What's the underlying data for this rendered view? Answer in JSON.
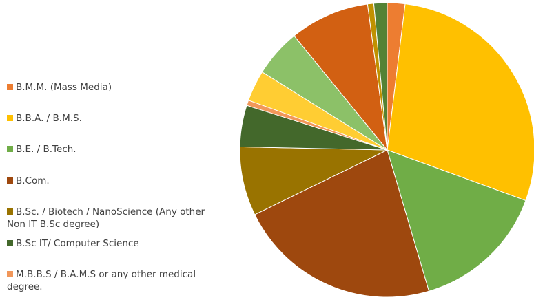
{
  "chart_data": {
    "type": "pie",
    "title": "",
    "legend_position": "left",
    "categories": [
      "B.M.M. (Mass Media)",
      "B.B.A. / B.M.S.",
      "B.E. / B.Tech.",
      "B.Com.",
      "B.Sc. / Biotech / NanoScience (Any other Non IT B.Sc degree)",
      "B.Sc IT/ Computer Science",
      "M.B.B.S / B.A.M.S or any other medical degree.",
      "",
      "",
      "",
      "",
      ""
    ],
    "legend_lines": [
      [
        "B.M.M. (Mass Media)"
      ],
      [
        "B.B.A. / B.M.S."
      ],
      [
        "B.E. / B.Tech."
      ],
      [
        "B.Com."
      ],
      [
        "B.Sc. / Biotech / NanoScience (Any other",
        "Non IT B.Sc degree)"
      ],
      [
        "B.Sc IT/ Computer Science"
      ],
      [
        "M.B.B.S / B.A.M.S or any other medical",
        "degree."
      ]
    ],
    "values": [
      2.0,
      29.5,
      15.3,
      23.0,
      7.8,
      4.7,
      0.6,
      3.5,
      5.4,
      9.0,
      0.7,
      1.5
    ],
    "colors": [
      "#ed7d31",
      "#ffc000",
      "#70ad47",
      "#9e480e",
      "#997300",
      "#43682b",
      "#f1975a",
      "#ffcd33",
      "#8cc168",
      "#d26012",
      "#c09100",
      "#548235"
    ]
  }
}
